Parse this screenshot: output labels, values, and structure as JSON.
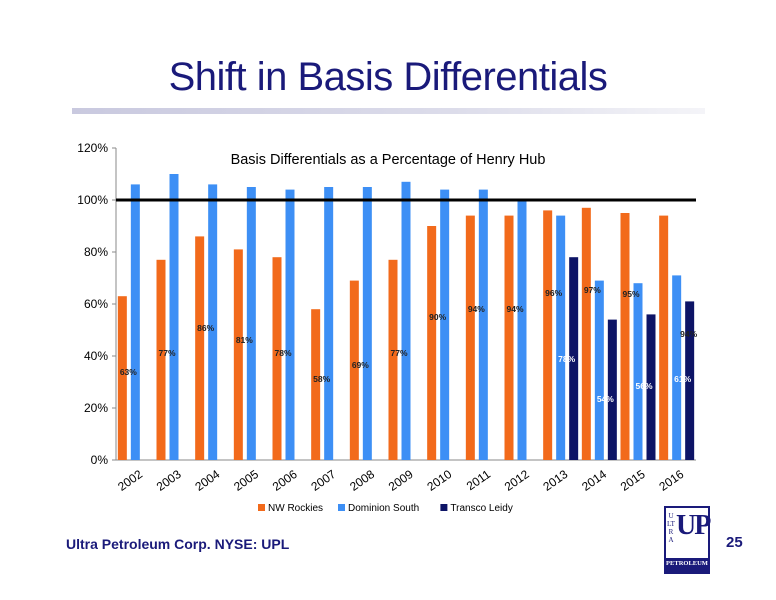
{
  "slide": {
    "title": "Shift in Basis Differentials",
    "footer": "Ultra Petroleum Corp. NYSE: UPL",
    "page_number": "25",
    "logo": {
      "main": "UP",
      "vertical": "ULTRA",
      "sub": "PETROLEUM"
    }
  },
  "colors": {
    "NW Rockies": "#f26a1b",
    "Dominion South": "#3d8ff5",
    "Transco Leidy": "#0d1466",
    "title": "#1a1a7a"
  },
  "chart_data": {
    "type": "bar",
    "title": "Basis Differentials as a Percentage of Henry Hub",
    "categories": [
      "2002",
      "2003",
      "2004",
      "2005",
      "2006",
      "2007",
      "2008",
      "2009",
      "2010",
      "2011",
      "2012",
      "2013",
      "2014",
      "2015",
      "2016"
    ],
    "series": [
      {
        "name": "NW Rockies",
        "values": [
          63,
          77,
          86,
          81,
          78,
          58,
          69,
          77,
          90,
          94,
          94,
          96,
          97,
          95,
          94
        ],
        "labels": [
          "63%",
          "77%",
          "86%",
          "81%",
          "78%",
          "58%",
          "69%",
          "77%",
          "90%",
          "94%",
          "94%",
          "96%",
          "97%",
          "95%",
          "94%"
        ]
      },
      {
        "name": "Dominion South",
        "values": [
          106,
          110,
          106,
          105,
          104,
          105,
          105,
          107,
          104,
          104,
          100,
          94,
          69,
          68,
          71
        ]
      },
      {
        "name": "Transco Leidy",
        "values": [
          null,
          null,
          null,
          null,
          null,
          null,
          null,
          null,
          null,
          null,
          null,
          78,
          54,
          56,
          61
        ],
        "labels": [
          "",
          "",
          "",
          "",
          "",
          "",
          "",
          "",
          "",
          "",
          "",
          "78%",
          "54%",
          "56%",
          "61%"
        ]
      }
    ],
    "ylim": [
      0,
      120
    ],
    "yticks": [
      0,
      20,
      40,
      60,
      80,
      100,
      120
    ],
    "ytick_labels": [
      "0%",
      "20%",
      "40%",
      "60%",
      "80%",
      "100%",
      "120%"
    ],
    "reference_line": 100,
    "legend": "bottom",
    "grid": false
  }
}
